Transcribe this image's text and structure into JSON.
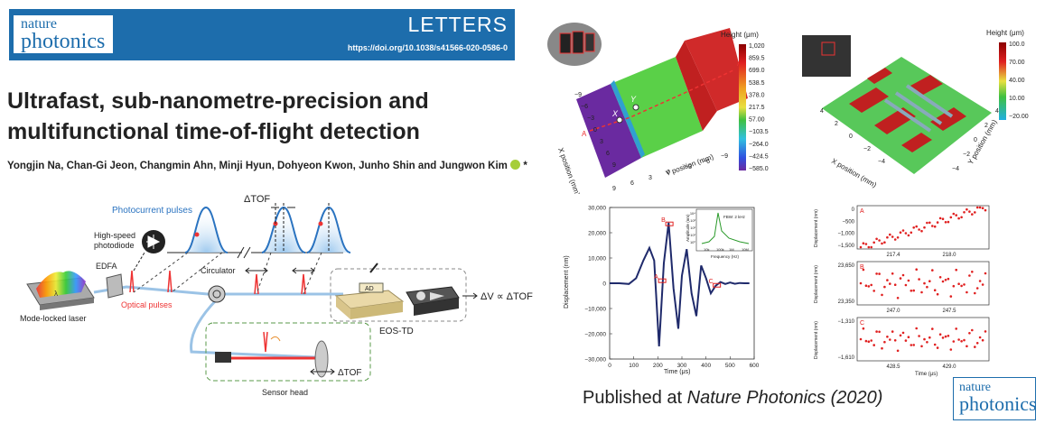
{
  "header": {
    "journal_logo": {
      "line1": "nature",
      "line2": "photonics"
    },
    "section": "LETTERS",
    "doi": "https://doi.org/10.1038/s41566-020-0586-0"
  },
  "paper": {
    "title_line1": "Ultrafast, sub-nanometre-precision and",
    "title_line2": "multifunctional time-of-flight detection",
    "authors": "Yongjin Na, Chan-Gi Jeon, Changmin Ahn, Minji Hyun, Dohyeon Kwon, Junho Shin and Jungwon Kim",
    "author_mark": "*"
  },
  "schematic": {
    "photocurrent_label": "Photocurrent pulses",
    "dtof_label": "ΔTOF",
    "photodiode_line1": "High-speed",
    "photodiode_line2": "photodiode",
    "edfa": "EDFA",
    "circulator": "Circulator",
    "laser": "Mode-locked laser",
    "optical_pulses": "Optical pulses",
    "output": "ΔV ∝ ΔTOF",
    "eos_td": "EOS-TD",
    "sensor_head": "Sensor head",
    "sensor_dtof": "ΔTOF",
    "lambda": "λ",
    "ad_box": "AD"
  },
  "surface_left": {
    "colorbar_title": "Height (μm)",
    "ticks": [
      "1,020",
      "859.5",
      "699.0",
      "538.5",
      "378.0",
      "217.5",
      "57.00",
      "−103.5",
      "−264.0",
      "−424.5",
      "−585.0"
    ],
    "x_label": "X position (mm)",
    "y_label": "Y position (mm)",
    "x_ticks": [
      "−9",
      "−6",
      "−3",
      "0",
      "3",
      "6",
      "9"
    ],
    "y_ticks": [
      "9",
      "6",
      "3",
      "0",
      "−3",
      "−6",
      "−9"
    ],
    "markers": {
      "x": "X",
      "y": "Y",
      "a": "A",
      "a_prime": "A′"
    }
  },
  "surface_right": {
    "colorbar_title": "Height (μm)",
    "ticks": [
      "100.0",
      "70.00",
      "40.00",
      "10.00",
      "−20.00"
    ],
    "x_label": "X position (mm)",
    "y_label": "Y position (mm)",
    "x_ticks": [
      "4",
      "2",
      "0",
      "−2",
      "−4"
    ],
    "y_ticks": [
      "4",
      "2",
      "0",
      "−2",
      "−4"
    ]
  },
  "chart_data": [
    {
      "type": "line",
      "title": "",
      "xlabel": "Time (μs)",
      "ylabel": "Displacement (nm)",
      "xlim": [
        0,
        600
      ],
      "ylim": [
        -30000,
        30000
      ],
      "x_ticks": [
        "0",
        "100",
        "200",
        "300",
        "400",
        "500",
        "600"
      ],
      "y_ticks": [
        "30,000",
        "20,000",
        "10,000",
        "0",
        "−10,000",
        "−20,000",
        "−30,000"
      ],
      "series": [
        {
          "x": [
            0,
            40,
            80,
            110,
            140,
            165,
            185,
            205,
            225,
            245,
            265,
            285,
            300,
            320,
            340,
            360,
            380,
            400,
            420,
            440,
            460,
            480,
            500,
            520,
            540,
            560,
            580
          ],
          "y": [
            0,
            0,
            -300,
            2000,
            9000,
            14000,
            9000,
            -25000,
            8000,
            24000,
            -2000,
            -18000,
            3000,
            13500,
            -4000,
            -13000,
            7000,
            2000,
            -4000,
            -1000,
            500,
            -300,
            300,
            -200,
            100,
            0,
            0
          ]
        }
      ],
      "annotations": [
        "A",
        "B",
        "C"
      ],
      "inset": {
        "label": "FBW: 2 kHz",
        "xlabel": "Frequency (Hz)",
        "ylabel": "Amplitude (nm)",
        "x_ticks": [
          "10k",
          "100k",
          "1M",
          "10M"
        ],
        "y_ticks": [
          "10⁴",
          "10³",
          "10²",
          "10¹",
          "10⁰"
        ]
      }
    },
    {
      "type": "scatter",
      "panel": "A",
      "ylabel": "Displacement (nm)",
      "xlim": [
        217.2,
        218.4
      ],
      "ylim": [
        -1500,
        0
      ],
      "x_ticks": [
        "217.4",
        "218.0"
      ],
      "y_ticks": [
        "0",
        "−500",
        "−1,000",
        "−1,500"
      ],
      "series": [
        {
          "x_start": 217.25,
          "x_end": 218.35,
          "y_start": -1450,
          "y_end": -40,
          "ripple": 120
        }
      ]
    },
    {
      "type": "scatter",
      "panel": "B",
      "ylabel": "Displacement (nm)",
      "xlim": [
        246.6,
        247.9
      ],
      "ylim": [
        23300,
        23700
      ],
      "x_ticks": [
        "247.0",
        "247.5"
      ],
      "y_ticks": [
        "23,650",
        "23,350"
      ],
      "series": [
        {
          "center": 23500,
          "spread": 140
        }
      ]
    },
    {
      "type": "scatter",
      "panel": "C",
      "ylabel": "Displacement (nm)",
      "xlim": [
        428.2,
        429.4
      ],
      "ylim": [
        -1660,
        -1260
      ],
      "x_ticks": [
        "428.5",
        "429.0"
      ],
      "y_ticks": [
        "−1,310",
        "−1,610"
      ],
      "series": [
        {
          "center": -1460,
          "spread": 110
        }
      ]
    }
  ],
  "footer": {
    "published_prefix": "Published at ",
    "journal_name": "Nature Photonics (2020)",
    "logo": {
      "line1": "nature",
      "line2": "photonics"
    }
  },
  "colors": {
    "nature_blue": "#1d6dac",
    "data_navy": "#1f2a6b",
    "data_red": "#e02020"
  }
}
